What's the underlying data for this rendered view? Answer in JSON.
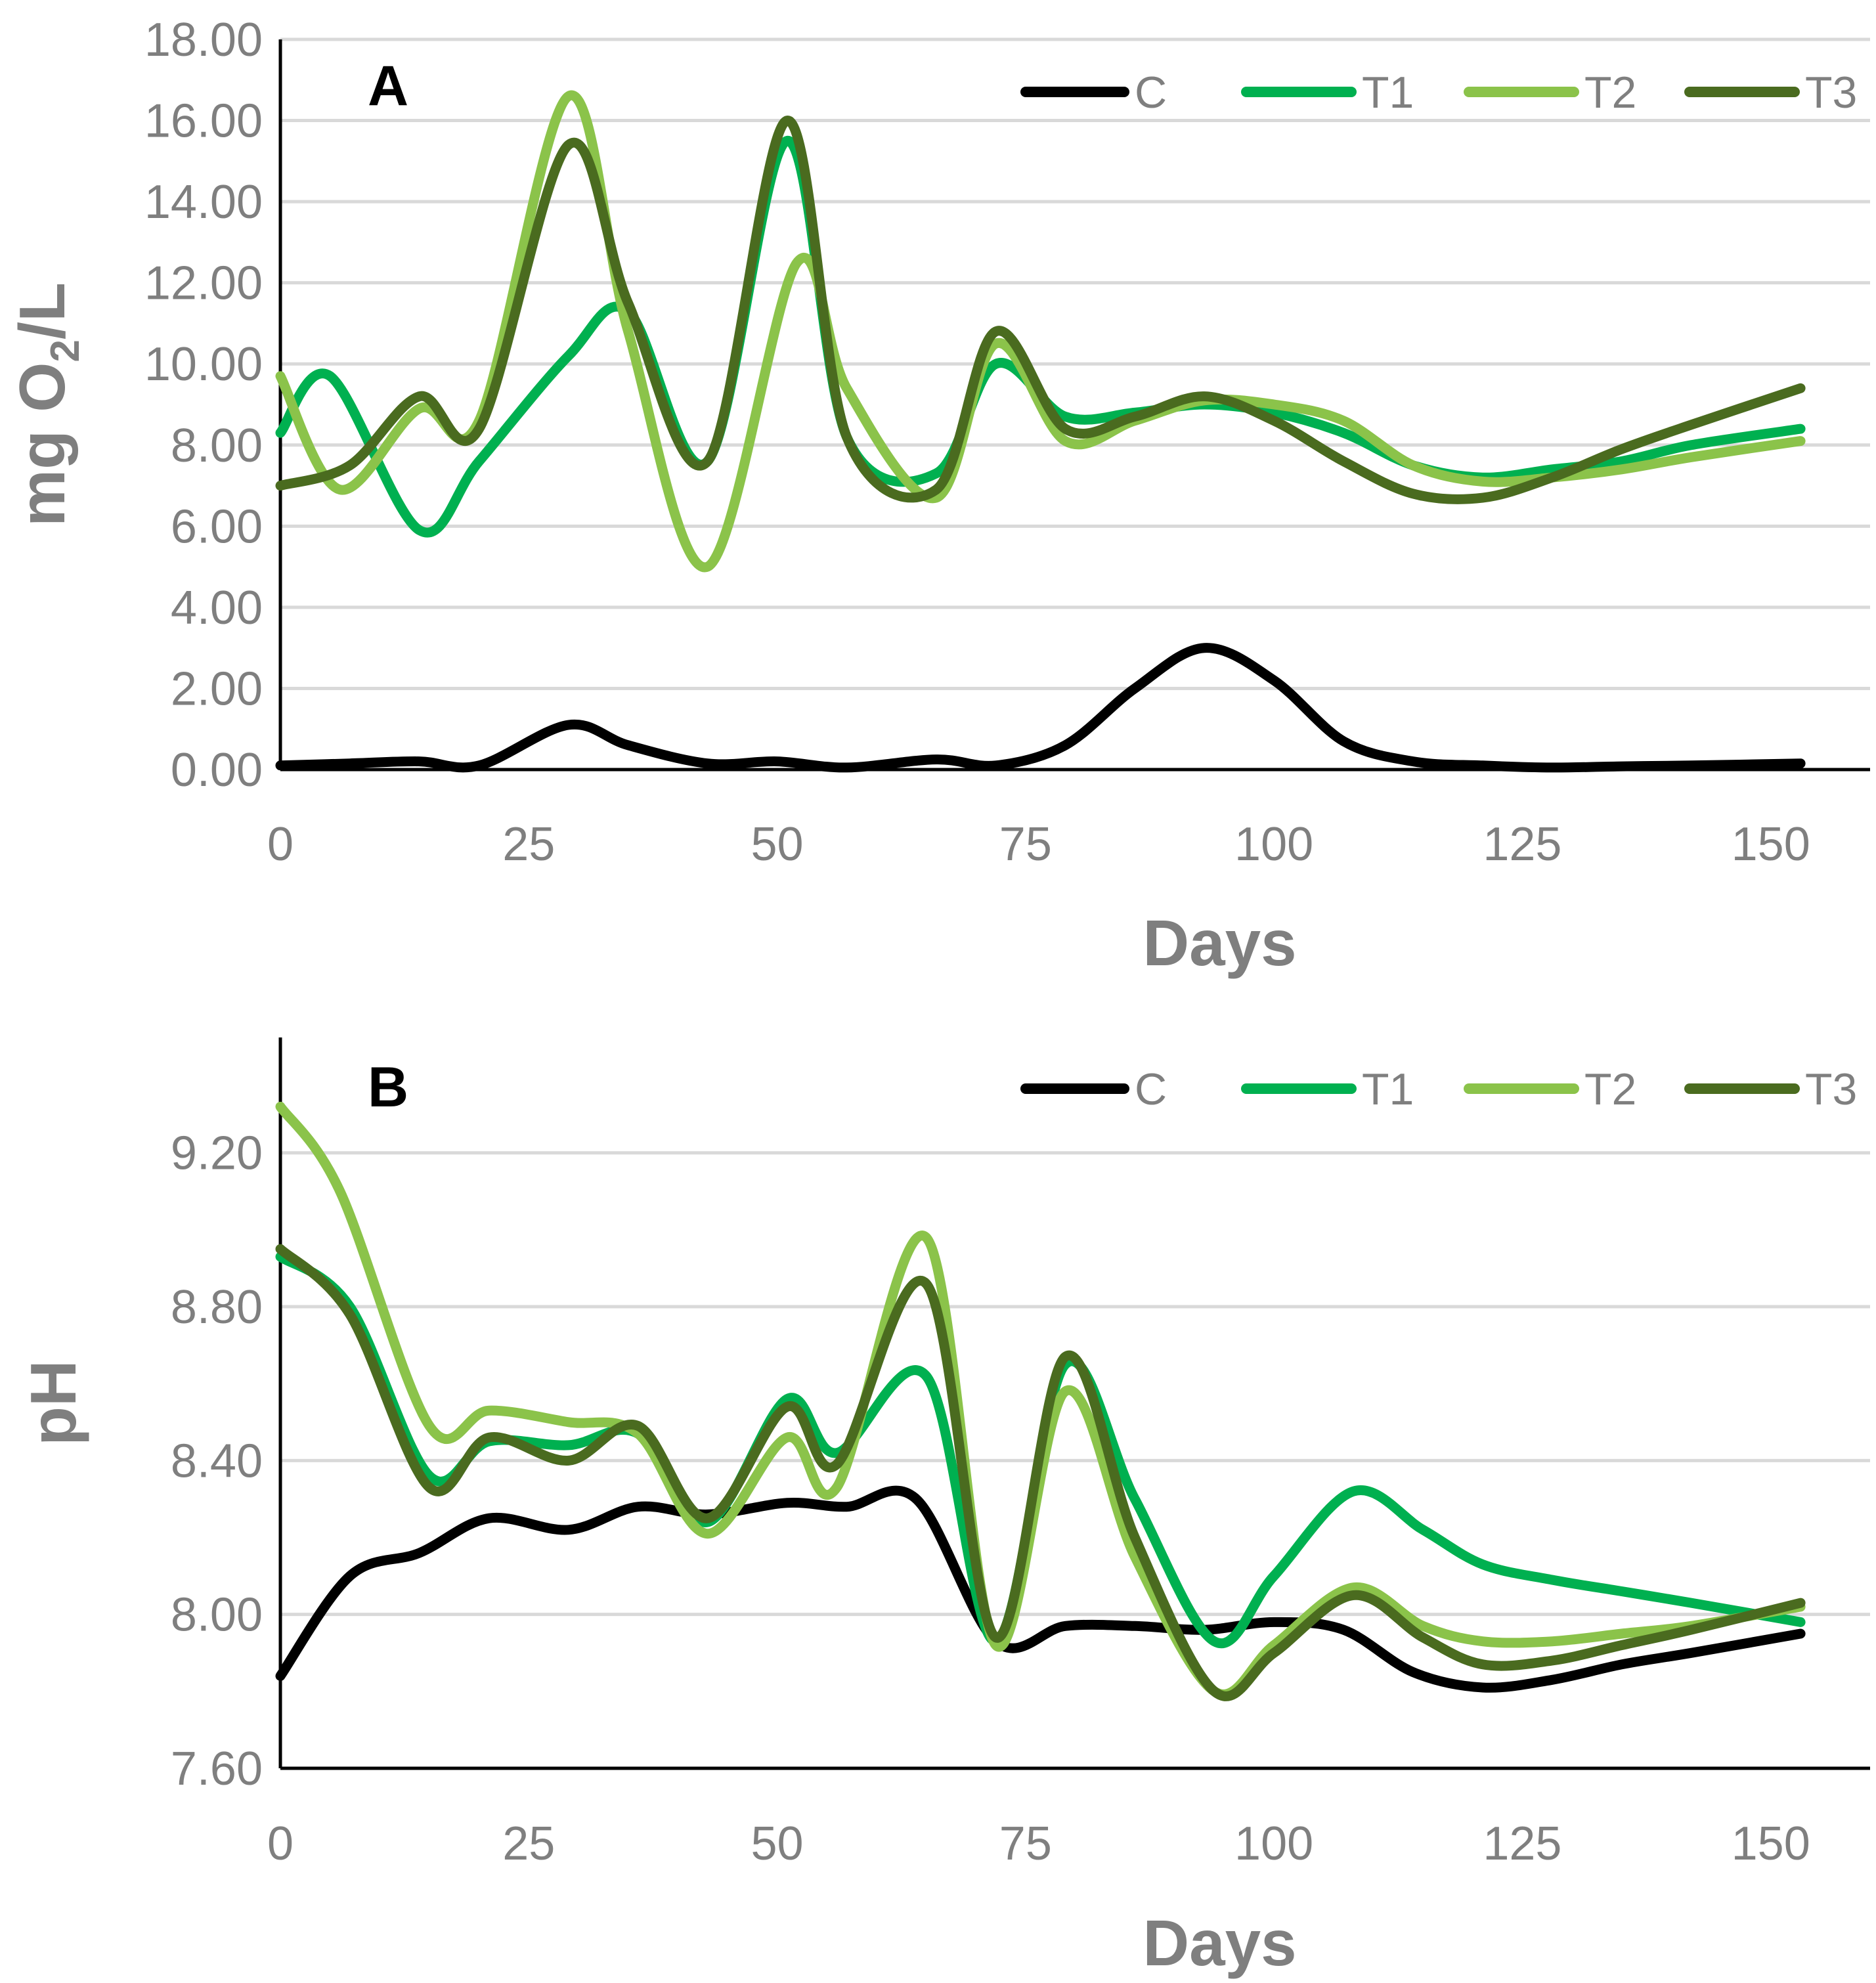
{
  "chart_data": [
    {
      "type": "line",
      "panel_label": "A",
      "xlabel": "Days",
      "ylabel_parts": [
        "mg O",
        "2",
        "/L"
      ],
      "xlim": [
        0,
        160
      ],
      "ylim": [
        0,
        18
      ],
      "x_ticks": [
        0,
        25,
        50,
        75,
        100,
        125,
        150
      ],
      "x_tick_labels": [
        "0",
        "25",
        "50",
        "75",
        "100",
        "125",
        "150"
      ],
      "y_ticks": [
        0,
        2,
        4,
        6,
        8,
        10,
        12,
        14,
        16,
        18
      ],
      "y_tick_labels": [
        "0.00",
        "2.00",
        "4.00",
        "6.00",
        "8.00",
        "10.00",
        "12.00",
        "14.00",
        "16.00",
        "18.00"
      ],
      "legend_position": "top-right",
      "grid": true,
      "series": [
        {
          "name": "C",
          "color": "#000000",
          "x": [
            0,
            7,
            14,
            20,
            29,
            35,
            43,
            50,
            57,
            66,
            72,
            79,
            86,
            93,
            100,
            107,
            114,
            121,
            128,
            135,
            142,
            153
          ],
          "y": [
            0.1,
            0.15,
            0.2,
            0.1,
            1.1,
            0.6,
            0.15,
            0.2,
            0.05,
            0.25,
            0.1,
            0.6,
            2.0,
            3.0,
            2.2,
            0.7,
            0.2,
            0.1,
            0.05,
            0.08,
            0.1,
            0.15
          ]
        },
        {
          "name": "T1",
          "color": "#00b050",
          "x": [
            0,
            5,
            14,
            20,
            29,
            35,
            43,
            51,
            57,
            66,
            72,
            79,
            86,
            93,
            100,
            107,
            114,
            121,
            128,
            135,
            142,
            153
          ],
          "y": [
            8.3,
            9.7,
            5.9,
            7.6,
            10.2,
            11.3,
            7.6,
            15.5,
            8.2,
            7.3,
            10.0,
            8.7,
            8.8,
            9.0,
            8.8,
            8.3,
            7.5,
            7.2,
            7.4,
            7.6,
            8.0,
            8.4
          ]
        },
        {
          "name": "T2",
          "color": "#8bc34a",
          "x": [
            0,
            6,
            14,
            20,
            29,
            35,
            43,
            52,
            57,
            66,
            72,
            79,
            86,
            93,
            100,
            107,
            114,
            121,
            128,
            135,
            142,
            153
          ],
          "y": [
            9.7,
            6.9,
            8.9,
            8.6,
            16.6,
            10.8,
            5.0,
            12.5,
            9.4,
            6.7,
            10.5,
            8.1,
            8.6,
            9.1,
            9.0,
            8.6,
            7.5,
            7.1,
            7.2,
            7.4,
            7.7,
            8.1
          ]
        },
        {
          "name": "T3",
          "color": "#4a6b1f",
          "x": [
            0,
            7,
            14,
            20,
            29,
            35,
            43,
            51,
            57,
            66,
            72,
            79,
            86,
            93,
            100,
            107,
            114,
            121,
            128,
            135,
            142,
            153
          ],
          "y": [
            7.0,
            7.5,
            9.2,
            8.4,
            15.4,
            11.5,
            7.6,
            16.0,
            8.2,
            6.9,
            10.8,
            8.4,
            8.7,
            9.2,
            8.6,
            7.6,
            6.8,
            6.7,
            7.2,
            7.9,
            8.5,
            9.4
          ]
        }
      ]
    },
    {
      "type": "line",
      "panel_label": "B",
      "xlabel": "Days",
      "ylabel": "pH",
      "xlim": [
        0,
        160
      ],
      "ylim": [
        7.6,
        9.5
      ],
      "x_ticks": [
        0,
        25,
        50,
        75,
        100,
        125,
        150
      ],
      "x_tick_labels": [
        "0",
        "25",
        "50",
        "75",
        "100",
        "125",
        "150"
      ],
      "y_ticks": [
        7.6,
        8.0,
        8.4,
        8.8,
        9.2
      ],
      "y_tick_labels": [
        "7.60",
        "8.00",
        "8.40",
        "8.80",
        "9.20"
      ],
      "legend_position": "top-right",
      "grid": true,
      "series": [
        {
          "name": "C",
          "color": "#000000",
          "x": [
            0,
            7,
            14,
            21,
            29,
            36,
            43,
            51,
            57,
            64,
            72,
            79,
            86,
            93,
            100,
            107,
            114,
            121,
            128,
            135,
            142,
            153
          ],
          "y": [
            7.84,
            8.1,
            8.16,
            8.25,
            8.22,
            8.28,
            8.26,
            8.29,
            8.28,
            8.3,
            7.93,
            7.97,
            7.97,
            7.96,
            7.98,
            7.96,
            7.85,
            7.81,
            7.83,
            7.87,
            7.9,
            7.95
          ]
        },
        {
          "name": "T1",
          "color": "#00b050",
          "x": [
            0,
            7,
            15,
            21,
            29,
            36,
            43,
            51,
            56,
            65,
            72,
            79,
            86,
            94,
            100,
            108,
            115,
            121,
            128,
            135,
            142,
            153
          ],
          "y": [
            8.93,
            8.8,
            8.36,
            8.45,
            8.44,
            8.47,
            8.24,
            8.56,
            8.42,
            8.62,
            7.93,
            8.65,
            8.3,
            7.93,
            8.1,
            8.32,
            8.22,
            8.13,
            8.09,
            8.06,
            8.03,
            7.98
          ]
        },
        {
          "name": "T2",
          "color": "#8bc34a",
          "x": [
            0,
            6,
            15,
            21,
            29,
            36,
            43,
            51,
            56,
            65,
            72,
            79,
            86,
            94,
            100,
            108,
            115,
            121,
            128,
            135,
            142,
            153
          ],
          "y": [
            9.32,
            9.1,
            8.49,
            8.53,
            8.5,
            8.47,
            8.21,
            8.46,
            8.33,
            8.98,
            7.92,
            8.58,
            8.15,
            7.8,
            7.92,
            8.07,
            7.97,
            7.93,
            7.93,
            7.95,
            7.97,
            8.02
          ]
        },
        {
          "name": "T3",
          "color": "#4a6b1f",
          "x": [
            0,
            7,
            15,
            21,
            29,
            36,
            43,
            51,
            56,
            65,
            72,
            79,
            86,
            94,
            100,
            108,
            115,
            121,
            128,
            135,
            142,
            153
          ],
          "y": [
            8.95,
            8.78,
            8.33,
            8.46,
            8.4,
            8.49,
            8.25,
            8.54,
            8.39,
            8.86,
            7.94,
            8.67,
            8.2,
            7.8,
            7.9,
            8.05,
            7.94,
            7.87,
            7.88,
            7.92,
            7.96,
            8.03
          ]
        }
      ]
    }
  ]
}
